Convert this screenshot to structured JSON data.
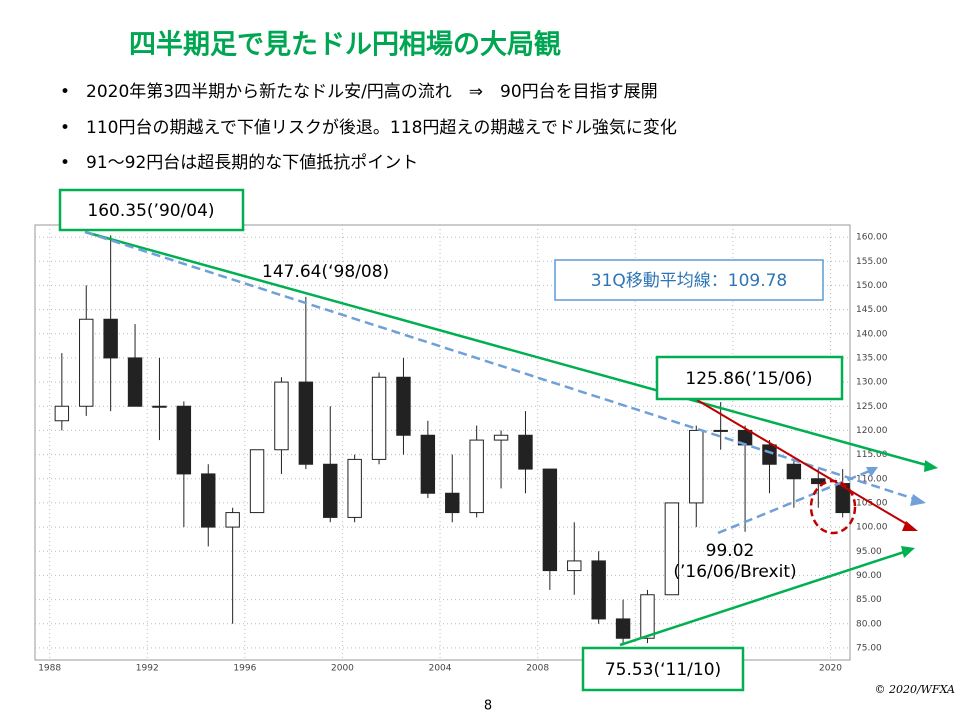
{
  "title": "四半期足で見たドル円相場の大局観",
  "bullets": [
    "2020年第3四半期から新たなドル安/円高の流れ　⇒　90円台を目指す展開",
    "110円台の期越えで下値リスクが後退。118円超えの期越えでドル強気に変化",
    "91～92円台は超長期的な下値抵抗ポイント"
  ],
  "chart_data": {
    "type": "candlestick",
    "x": [
      1988,
      1989,
      1990,
      1991,
      1992,
      1993,
      1994,
      1995,
      1996,
      1997,
      1998,
      1999,
      2000,
      2001,
      2002,
      2003,
      2004,
      2005,
      2006,
      2007,
      2008,
      2009,
      2010,
      2011,
      2012,
      2013,
      2014,
      2015,
      2016,
      2017,
      2018,
      2019,
      2020
    ],
    "open": [
      122,
      125,
      143,
      135,
      125,
      125,
      111,
      100,
      103,
      116,
      130,
      113,
      102,
      114,
      131,
      119,
      107,
      103,
      118,
      119,
      112,
      91,
      93,
      81,
      77,
      86,
      105,
      120,
      120,
      117,
      113,
      110,
      109
    ],
    "high": [
      136,
      150,
      160.35,
      142,
      135,
      126,
      113,
      104,
      116,
      131,
      147.64,
      125,
      115,
      132,
      135,
      122,
      115,
      121,
      120,
      124,
      112,
      101,
      95,
      85,
      87,
      105,
      121,
      125.86,
      121,
      118,
      114,
      112,
      112
    ],
    "low": [
      120,
      123,
      124,
      125,
      118,
      100,
      96,
      80,
      103,
      111,
      112,
      101,
      101,
      113,
      115,
      106,
      101,
      102,
      108,
      107,
      87,
      86,
      80,
      75.53,
      76,
      86,
      100,
      116,
      99.02,
      107,
      104,
      104,
      102
    ],
    "close": [
      125,
      143,
      135,
      125,
      125,
      111,
      100,
      103,
      116,
      130,
      113,
      102,
      114,
      131,
      119,
      107,
      103,
      118,
      119,
      112,
      91,
      93,
      81,
      77,
      86,
      105,
      120,
      120,
      117,
      113,
      110,
      109,
      103
    ],
    "xlim": [
      1987.4,
      2020.8
    ],
    "xticks": [
      1988,
      1992,
      1996,
      2000,
      2004,
      2008,
      2012,
      2016,
      2020
    ],
    "ylim": [
      72.5,
      162.5
    ],
    "yticks": [
      {
        "value": 75,
        "label": "75.00"
      },
      {
        "value": 80,
        "label": "80.00"
      },
      {
        "value": 85,
        "label": "85.00"
      },
      {
        "value": 90,
        "label": "90.00"
      },
      {
        "value": 95,
        "label": "95.00"
      },
      {
        "value": 100,
        "label": "100.00"
      },
      {
        "value": 105,
        "label": "105.00"
      },
      {
        "value": 110,
        "label": "110.00"
      },
      {
        "value": 115,
        "label": "115.00"
      },
      {
        "value": 120,
        "label": "120.00"
      },
      {
        "value": 125,
        "label": "125.00"
      },
      {
        "value": 130,
        "label": "130.00"
      },
      {
        "value": 135,
        "label": "135.00"
      },
      {
        "value": 140,
        "label": "140.00"
      },
      {
        "value": 145,
        "label": "145.00"
      },
      {
        "value": 150,
        "label": "150.00"
      },
      {
        "value": 155,
        "label": "155.00"
      },
      {
        "value": 160,
        "label": "160.00"
      }
    ],
    "grid": true,
    "annotations": [
      "160.35(’90/04)",
      "147.64(‘98/08)",
      "31Q移動平均線：109.78",
      "125.86(’15/06)",
      "99.02",
      "(’16/06/Brexit)",
      "75.53(‘11/10)"
    ]
  },
  "footer": {
    "copyright": "© 2020/WFXA",
    "page": "8"
  }
}
